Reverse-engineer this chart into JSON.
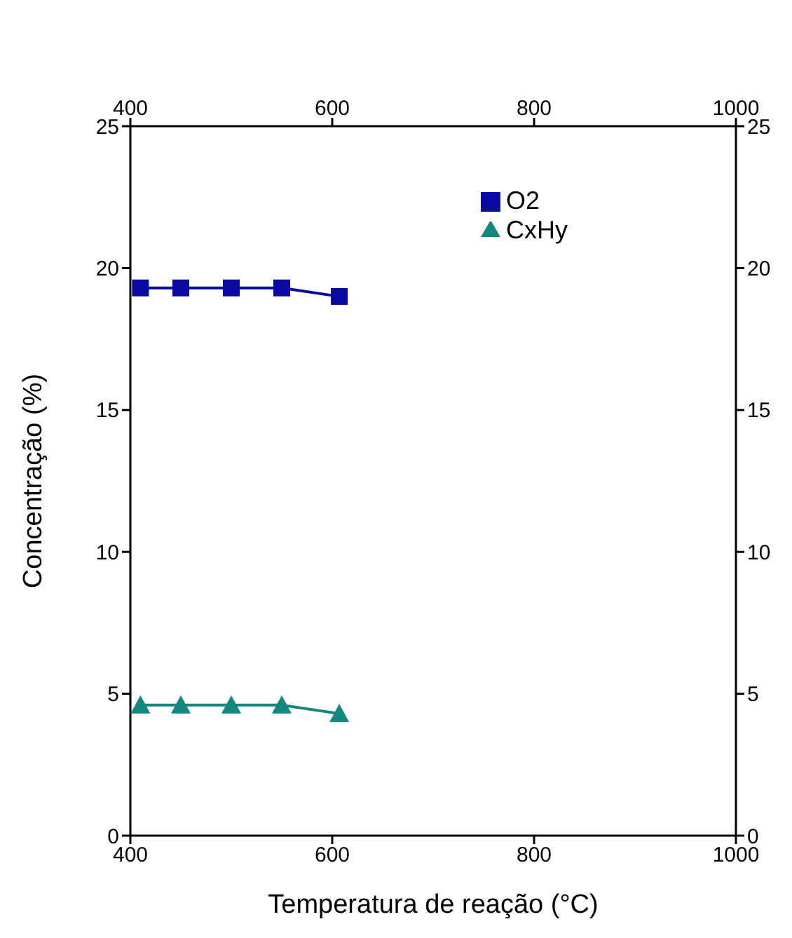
{
  "chart_data": {
    "type": "line",
    "xlabel": "Temperatura de reação (°C)",
    "ylabel": "Concentração (%)",
    "xlim": [
      400,
      1000
    ],
    "xticks": [
      400,
      600,
      800,
      1000
    ],
    "x2lim": [
      400,
      1000
    ],
    "x2ticks": [
      400,
      600,
      800,
      1000
    ],
    "ylim": [
      0,
      25
    ],
    "yticks": [
      0,
      5,
      10,
      15,
      20,
      25
    ],
    "y2lim": [
      0,
      25
    ],
    "y2ticks": [
      0,
      5,
      10,
      15,
      20,
      25
    ],
    "x": [
      410,
      450,
      500,
      550,
      607
    ],
    "series": [
      {
        "name": "O2",
        "color": "#0a0aa0",
        "marker": "square",
        "values": [
          19.3,
          19.3,
          19.3,
          19.3,
          19.0
        ]
      },
      {
        "name": "CxHy",
        "color": "#14877f",
        "marker": "triangle",
        "values": [
          4.6,
          4.6,
          4.6,
          4.6,
          4.3
        ]
      }
    ],
    "legend": "top right",
    "grid": false
  }
}
